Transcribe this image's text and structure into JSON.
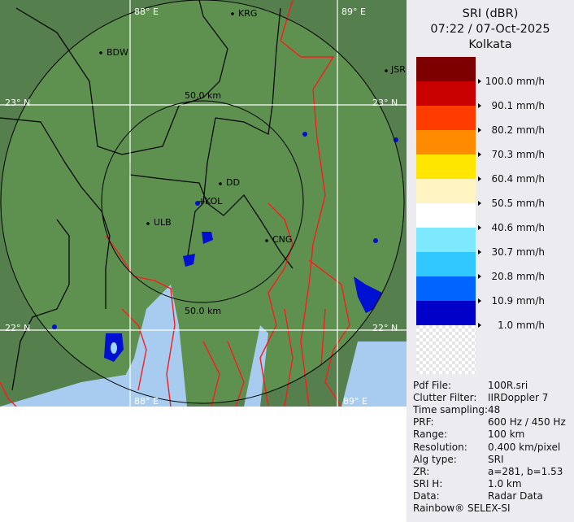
{
  "header": {
    "product": "SRI (dBR)",
    "datetime": "07:22 / 07-Oct-2025",
    "site": "Kolkata"
  },
  "legend": {
    "colors": [
      "#7d0000",
      "#c80000",
      "#ff3c00",
      "#ff8c00",
      "#ffe600",
      "#fff4c2",
      "#ffffff",
      "#7ee8ff",
      "#30c8ff",
      "#0064ff",
      "#0000c8"
    ],
    "labels": [
      "100.0 mm/h",
      "90.1 mm/h",
      "80.2 mm/h",
      "70.3 mm/h",
      "60.4 mm/h",
      "50.5 mm/h",
      "40.6 mm/h",
      "30.7 mm/h",
      "20.8 mm/h",
      "10.9 mm/h",
      "1.0 mm/h"
    ]
  },
  "info": [
    {
      "key": "Pdf File:",
      "value": "100R.sri"
    },
    {
      "key": "Clutter Filter:",
      "value": "IIRDoppler 7"
    },
    {
      "key": "Time sampling:",
      "value": "48"
    },
    {
      "key": "PRF:",
      "value": "600 Hz / 450 Hz"
    },
    {
      "key": "Range:",
      "value": "100 km"
    },
    {
      "key": "Resolution:",
      "value": "0.400 km/pixel"
    },
    {
      "key": "Alg type:",
      "value": "SRI"
    },
    {
      "key": "ZR:",
      "value": "a=281, b=1.53"
    },
    {
      "key": "SRI H:",
      "value": "1.0 km"
    },
    {
      "key": "Data:",
      "value": "Radar Data"
    }
  ],
  "footer": "Rainbow® SELEX-SI",
  "map": {
    "grid": {
      "lon_left": "88° E",
      "lon_right": "89° E",
      "lat_top": "23° N",
      "lat_bottom": "22° N",
      "lon_left_bottom": "88° E",
      "lon_right_bottom": "89° E"
    },
    "rings": [
      "50.0 km",
      "50.0 km"
    ],
    "cities": [
      "KRG",
      "BDW",
      "JSR",
      "DD",
      "KOL",
      "ULB",
      "CNG"
    ],
    "colors": {
      "land": "#5a8a4a",
      "water": "#a8ccf0",
      "border": "#000000",
      "river_border": "#ff0000"
    }
  }
}
